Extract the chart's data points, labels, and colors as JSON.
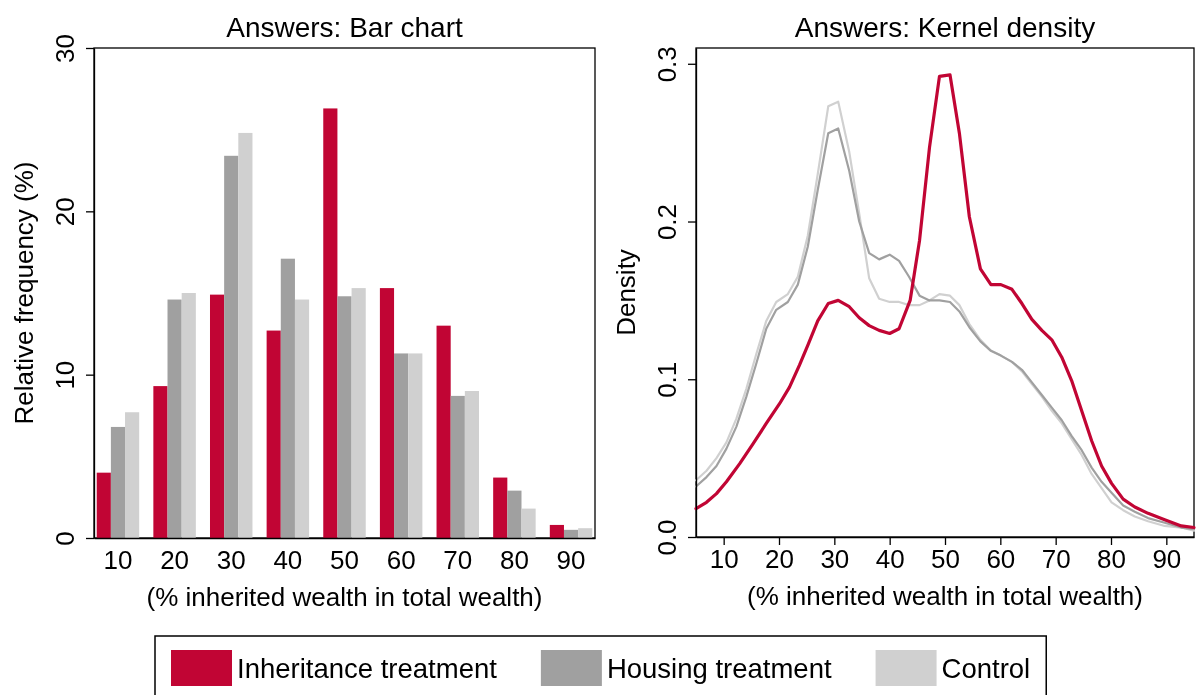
{
  "chart_data": [
    {
      "type": "bar",
      "title": "Answers: Bar chart",
      "xlabel": "(% inherited wealth in total wealth)",
      "ylabel": "Relative frequency (%)",
      "categories": [
        "10",
        "20",
        "30",
        "40",
        "50",
        "60",
        "70",
        "80",
        "90"
      ],
      "series": [
        {
          "name": "Inheritance treatment",
          "color": "#c10534",
          "values": [
            4.0,
            9.3,
            14.9,
            12.7,
            26.3,
            15.3,
            13.0,
            3.7,
            0.8
          ]
        },
        {
          "name": "Housing treatment",
          "color": "#a0a0a0",
          "values": [
            6.8,
            14.6,
            23.4,
            17.1,
            14.8,
            11.3,
            8.7,
            2.9,
            0.5
          ]
        },
        {
          "name": "Control",
          "color": "#d0d0d0",
          "values": [
            7.7,
            15.0,
            24.8,
            14.6,
            15.3,
            11.3,
            9.0,
            1.8,
            0.6
          ]
        }
      ],
      "ylim": [
        0,
        30
      ],
      "yticks": [
        0,
        10,
        20,
        30
      ],
      "legend": "bottom"
    },
    {
      "type": "line",
      "title": "Answers: Kernel density",
      "xlabel": "(% inherited wealth in total wealth)",
      "ylabel": "Density",
      "x": [
        5,
        6.9,
        8.7,
        10.5,
        12.3,
        14.1,
        15.9,
        17.7,
        19.5,
        21.6,
        23.4,
        25.2,
        27,
        28.9,
        30.7,
        32.7,
        34.5,
        36.3,
        38.1,
        40,
        41.7,
        43.5,
        45.4,
        47.2,
        49,
        50.9,
        52.6,
        54.4,
        56.4,
        58.3,
        60.1,
        62.1,
        63.9,
        65.7,
        67.5,
        69.3,
        71.1,
        72.9,
        74.7,
        76.5,
        78.3,
        80.1,
        82.2,
        84.3,
        86.7,
        89.7,
        92.7,
        95
      ],
      "series": [
        {
          "name": "Inheritance treatment",
          "color": "#c10534",
          "x": [
            5,
            6.9,
            8.7,
            10.5,
            12.9,
            15.3,
            17.7,
            20.1,
            21.9,
            23.7,
            25.2,
            27,
            28.9,
            30.7,
            32.7,
            34.5,
            36.3,
            38.1,
            40,
            41.7,
            43.7,
            45.4,
            47.2,
            49,
            50.9,
            52.6,
            54.4,
            56.4,
            58.3,
            60.1,
            62.1,
            63.9,
            65.7,
            67.5,
            69.3,
            71.1,
            72.9,
            74.7,
            76.5,
            78.3,
            80.1,
            82.2,
            84.3,
            86.7,
            89.7,
            92.7,
            95
          ],
          "values": [
            0.018,
            0.022,
            0.0275,
            0.035,
            0.0465,
            0.059,
            0.072,
            0.0845,
            0.095,
            0.109,
            0.1215,
            0.137,
            0.148,
            0.15,
            0.146,
            0.139,
            0.134,
            0.131,
            0.129,
            0.132,
            0.15,
            0.188,
            0.247,
            0.292,
            0.293,
            0.256,
            0.203,
            0.17,
            0.16,
            0.16,
            0.157,
            0.148,
            0.138,
            0.131,
            0.125,
            0.114,
            0.099,
            0.08,
            0.061,
            0.045,
            0.034,
            0.024,
            0.019,
            0.015,
            0.011,
            0.007,
            0.006
          ]
        },
        {
          "name": "Housing treatment",
          "color": "#a0a0a0",
          "values": [
            0.032,
            0.038,
            0.045,
            0.056,
            0.07,
            0.089,
            0.11,
            0.132,
            0.144,
            0.149,
            0.16,
            0.184,
            0.22,
            0.256,
            0.259,
            0.232,
            0.2,
            0.18,
            0.176,
            0.179,
            0.175,
            0.165,
            0.153,
            0.15,
            0.15,
            0.149,
            0.143,
            0.133,
            0.124,
            0.118,
            0.115,
            0.111,
            0.106,
            0.098,
            0.09,
            0.082,
            0.074,
            0.064,
            0.055,
            0.044,
            0.035,
            0.028,
            0.02,
            0.016,
            0.012,
            0.009,
            0.006,
            0.005
          ]
        },
        {
          "name": "Control",
          "color": "#d0d0d0",
          "values": [
            0.036,
            0.042,
            0.05,
            0.06,
            0.075,
            0.094,
            0.116,
            0.137,
            0.149,
            0.154,
            0.165,
            0.191,
            0.23,
            0.273,
            0.276,
            0.244,
            0.205,
            0.164,
            0.151,
            0.149,
            0.149,
            0.147,
            0.147,
            0.15,
            0.154,
            0.153,
            0.147,
            0.135,
            0.125,
            0.118,
            0.115,
            0.111,
            0.105,
            0.097,
            0.089,
            0.08,
            0.072,
            0.062,
            0.052,
            0.04,
            0.031,
            0.022,
            0.017,
            0.013,
            0.01,
            0.007,
            0.006,
            0.004
          ]
        }
      ],
      "xlim": [
        5,
        95
      ],
      "xticks": [
        10,
        20,
        30,
        40,
        50,
        60,
        70,
        80,
        90
      ],
      "ylim": [
        0,
        0.31
      ],
      "yticks": [
        {
          "value": 0,
          "label": "0.0"
        },
        0.1,
        0.2,
        0.3
      ],
      "legend": "bottom"
    }
  ]
}
